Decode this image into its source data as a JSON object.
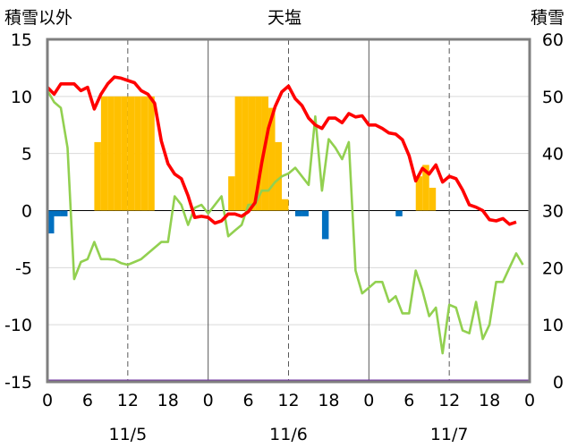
{
  "chart_data": {
    "type": "bar+line",
    "title": "天塩",
    "ylabel_left": "積雪以外",
    "ylabel_right": "積雪",
    "ylim_left": [
      -15,
      15
    ],
    "ylim_right": [
      0,
      60
    ],
    "yticks_left": [
      "15",
      "10",
      "5",
      "0",
      "-5",
      "-10",
      "-15"
    ],
    "yticks_right": [
      "60",
      "50",
      "40",
      "30",
      "20",
      "10",
      "0"
    ],
    "xticks": [
      "0",
      "6",
      "12",
      "18",
      "0",
      "6",
      "12",
      "18",
      "0",
      "6",
      "12",
      "18",
      "0"
    ],
    "dates": [
      "11/5",
      "11/6",
      "11/7"
    ],
    "x_range_hours": [
      0,
      72
    ],
    "colors": {
      "snowfall": "#ffc000",
      "precip": "#0070c0",
      "temperature": "#ff0000",
      "snow_depth": "#92d050",
      "baseline": "#7030a0",
      "frame": "#7f7f7f"
    },
    "snowfall_bars": [
      [
        8,
        6
      ],
      [
        9,
        10
      ],
      [
        10,
        10
      ],
      [
        11,
        10
      ],
      [
        12,
        10
      ],
      [
        13,
        10
      ],
      [
        14,
        10
      ],
      [
        15,
        10
      ],
      [
        16,
        10
      ],
      [
        28,
        3
      ],
      [
        29,
        10
      ],
      [
        30,
        10
      ],
      [
        31,
        10
      ],
      [
        32,
        10
      ],
      [
        33,
        10
      ],
      [
        34,
        9
      ],
      [
        35,
        6
      ],
      [
        36,
        1
      ],
      [
        56,
        3
      ],
      [
        57,
        4
      ],
      [
        58,
        2
      ]
    ],
    "precip_bars": [
      [
        1,
        -2
      ],
      [
        2,
        -0.5
      ],
      [
        3,
        -0.5
      ],
      [
        38,
        -0.5
      ],
      [
        39,
        -0.5
      ],
      [
        42,
        -2.5
      ],
      [
        53,
        -0.5
      ]
    ],
    "temperature": [
      [
        0,
        10.8
      ],
      [
        1,
        10.2
      ],
      [
        2,
        11.1
      ],
      [
        3,
        11.1
      ],
      [
        4,
        11.1
      ],
      [
        5,
        10.5
      ],
      [
        6,
        10.8
      ],
      [
        7,
        8.9
      ],
      [
        8,
        10.2
      ],
      [
        9,
        11.1
      ],
      [
        10,
        11.7
      ],
      [
        11,
        11.6
      ],
      [
        12,
        11.4
      ],
      [
        13,
        11.2
      ],
      [
        14,
        10.5
      ],
      [
        15,
        10.2
      ],
      [
        16,
        9.4
      ],
      [
        17,
        6.1
      ],
      [
        18,
        4.1
      ],
      [
        19,
        3.2
      ],
      [
        20,
        2.8
      ],
      [
        21,
        1.3
      ],
      [
        22,
        -0.6
      ],
      [
        23,
        -0.5
      ],
      [
        24,
        -0.6
      ],
      [
        25,
        -1.1
      ],
      [
        26,
        -0.9
      ],
      [
        27,
        -0.3
      ],
      [
        28,
        -0.3
      ],
      [
        29,
        -0.5
      ],
      [
        30,
        -0.1
      ],
      [
        31,
        0.7
      ],
      [
        32,
        4.2
      ],
      [
        33,
        7.2
      ],
      [
        34,
        9.1
      ],
      [
        35,
        10.4
      ],
      [
        36,
        10.9
      ],
      [
        37,
        9.8
      ],
      [
        38,
        9.2
      ],
      [
        39,
        8.1
      ],
      [
        40,
        7.5
      ],
      [
        41,
        7.2
      ],
      [
        42,
        8.1
      ],
      [
        43,
        8.1
      ],
      [
        44,
        7.7
      ],
      [
        45,
        8.5
      ],
      [
        46,
        8.2
      ],
      [
        47,
        8.3
      ],
      [
        48,
        7.5
      ],
      [
        49,
        7.5
      ],
      [
        50,
        7.2
      ],
      [
        51,
        6.8
      ],
      [
        52,
        6.7
      ],
      [
        53,
        6.2
      ],
      [
        54,
        4.8
      ],
      [
        55,
        2.6
      ],
      [
        56,
        3.7
      ],
      [
        57,
        3.2
      ],
      [
        58,
        4.0
      ],
      [
        59,
        2.5
      ],
      [
        60,
        3.0
      ],
      [
        61,
        2.8
      ],
      [
        62,
        1.8
      ],
      [
        63,
        0.5
      ],
      [
        64,
        0.3
      ],
      [
        65,
        0.0
      ],
      [
        66,
        -0.8
      ],
      [
        67,
        -0.9
      ],
      [
        68,
        -0.7
      ],
      [
        69,
        -1.2
      ],
      [
        70,
        -1.0
      ]
    ],
    "snow_depth": [
      [
        0,
        51
      ],
      [
        1,
        49
      ],
      [
        2,
        48
      ],
      [
        3,
        41
      ],
      [
        4,
        18
      ],
      [
        5,
        21
      ],
      [
        6,
        21.5
      ],
      [
        7,
        24.5
      ],
      [
        8,
        21.5
      ],
      [
        9,
        21.5
      ],
      [
        10,
        21.4
      ],
      [
        11,
        20.8
      ],
      [
        12,
        20.5
      ],
      [
        13,
        21
      ],
      [
        14,
        21.5
      ],
      [
        15,
        22.5
      ],
      [
        16,
        23.5
      ],
      [
        17,
        24.5
      ],
      [
        18,
        24.5
      ],
      [
        19,
        32.5
      ],
      [
        20,
        31
      ],
      [
        21,
        27.5
      ],
      [
        22,
        30.5
      ],
      [
        23,
        31
      ],
      [
        24,
        29.5
      ],
      [
        25,
        31
      ],
      [
        26,
        32.5
      ],
      [
        27,
        25.5
      ],
      [
        28,
        26.5
      ],
      [
        29,
        27.5
      ],
      [
        30,
        31
      ],
      [
        31,
        31
      ],
      [
        32,
        33.5
      ],
      [
        33,
        33.5
      ],
      [
        34,
        35
      ],
      [
        35,
        36
      ],
      [
        36,
        36.5
      ],
      [
        37,
        37.5
      ],
      [
        38,
        36
      ],
      [
        39,
        34.5
      ],
      [
        40,
        46.5
      ],
      [
        41,
        33.5
      ],
      [
        42,
        42.5
      ],
      [
        43,
        41
      ],
      [
        44,
        39
      ],
      [
        45,
        42
      ],
      [
        46,
        19.5
      ],
      [
        47,
        15.5
      ],
      [
        48,
        16.5
      ],
      [
        49,
        17.5
      ],
      [
        50,
        17.5
      ],
      [
        51,
        14
      ],
      [
        52,
        15
      ],
      [
        53,
        12
      ],
      [
        54,
        12
      ],
      [
        55,
        19.5
      ],
      [
        56,
        16
      ],
      [
        57,
        11.5
      ],
      [
        58,
        13
      ],
      [
        59,
        5
      ],
      [
        60,
        13.5
      ],
      [
        61,
        13
      ],
      [
        62,
        9
      ],
      [
        63,
        8.5
      ],
      [
        64,
        14
      ],
      [
        65,
        7.5
      ],
      [
        66,
        10
      ],
      [
        67,
        17.5
      ],
      [
        68,
        17.5
      ],
      [
        69,
        20
      ],
      [
        70,
        22.5
      ],
      [
        71,
        20.5
      ]
    ]
  }
}
